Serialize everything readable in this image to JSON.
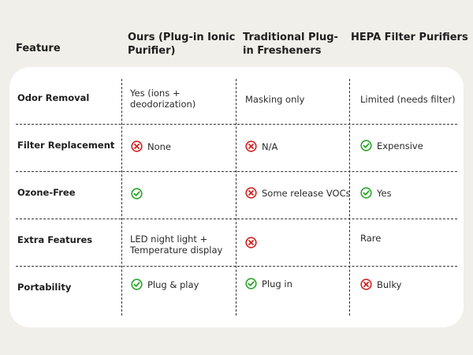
{
  "headers": {
    "feature": "Feature",
    "ours": "Ours (Plug-in Ionic Purifier)",
    "traditional": "Traditional Plug-in Fresheners",
    "hepa": "HEPA Filter Purifiers"
  },
  "rows": [
    {
      "feature": "Odor Removal",
      "ours": {
        "icon": "",
        "lines": [
          "Yes (ions +",
          "deodorization)"
        ]
      },
      "traditional": {
        "icon": "",
        "lines": [
          "Masking only"
        ]
      },
      "hepa": {
        "icon": "",
        "lines": [
          "Limited (needs filter)"
        ]
      }
    },
    {
      "feature": "Filter Replacement",
      "ours": {
        "icon": "cross-icon",
        "lines": [
          "None"
        ]
      },
      "traditional": {
        "icon": "cross-icon",
        "lines": [
          "N/A"
        ]
      },
      "hepa": {
        "icon": "check-icon",
        "lines": [
          "Expensive"
        ]
      }
    },
    {
      "feature": "Ozone-Free",
      "ours": {
        "icon": "check-icon",
        "lines": [
          ""
        ]
      },
      "traditional": {
        "icon": "cross-icon",
        "lines": [
          "Some release VOCs"
        ]
      },
      "hepa": {
        "icon": "check-icon",
        "lines": [
          "Yes"
        ]
      }
    },
    {
      "feature": "Extra Features",
      "ours": {
        "icon": "",
        "lines": [
          "LED night light +",
          "Temperature display"
        ]
      },
      "traditional": {
        "icon": "cross-icon",
        "lines": [
          ""
        ]
      },
      "hepa": {
        "icon": "",
        "lines": [
          "Rare"
        ]
      }
    },
    {
      "feature": "Portability",
      "ours": {
        "icon": "check-icon",
        "lines": [
          "Plug & play"
        ]
      },
      "traditional": {
        "icon": "check-icon",
        "lines": [
          "Plug in"
        ]
      },
      "hepa": {
        "icon": "cross-icon",
        "lines": [
          "Bulky"
        ]
      }
    }
  ],
  "colors": {
    "background": "#f1efe9",
    "card": "#ffffff",
    "check": "#2aa52a",
    "cross": "#d42020"
  }
}
